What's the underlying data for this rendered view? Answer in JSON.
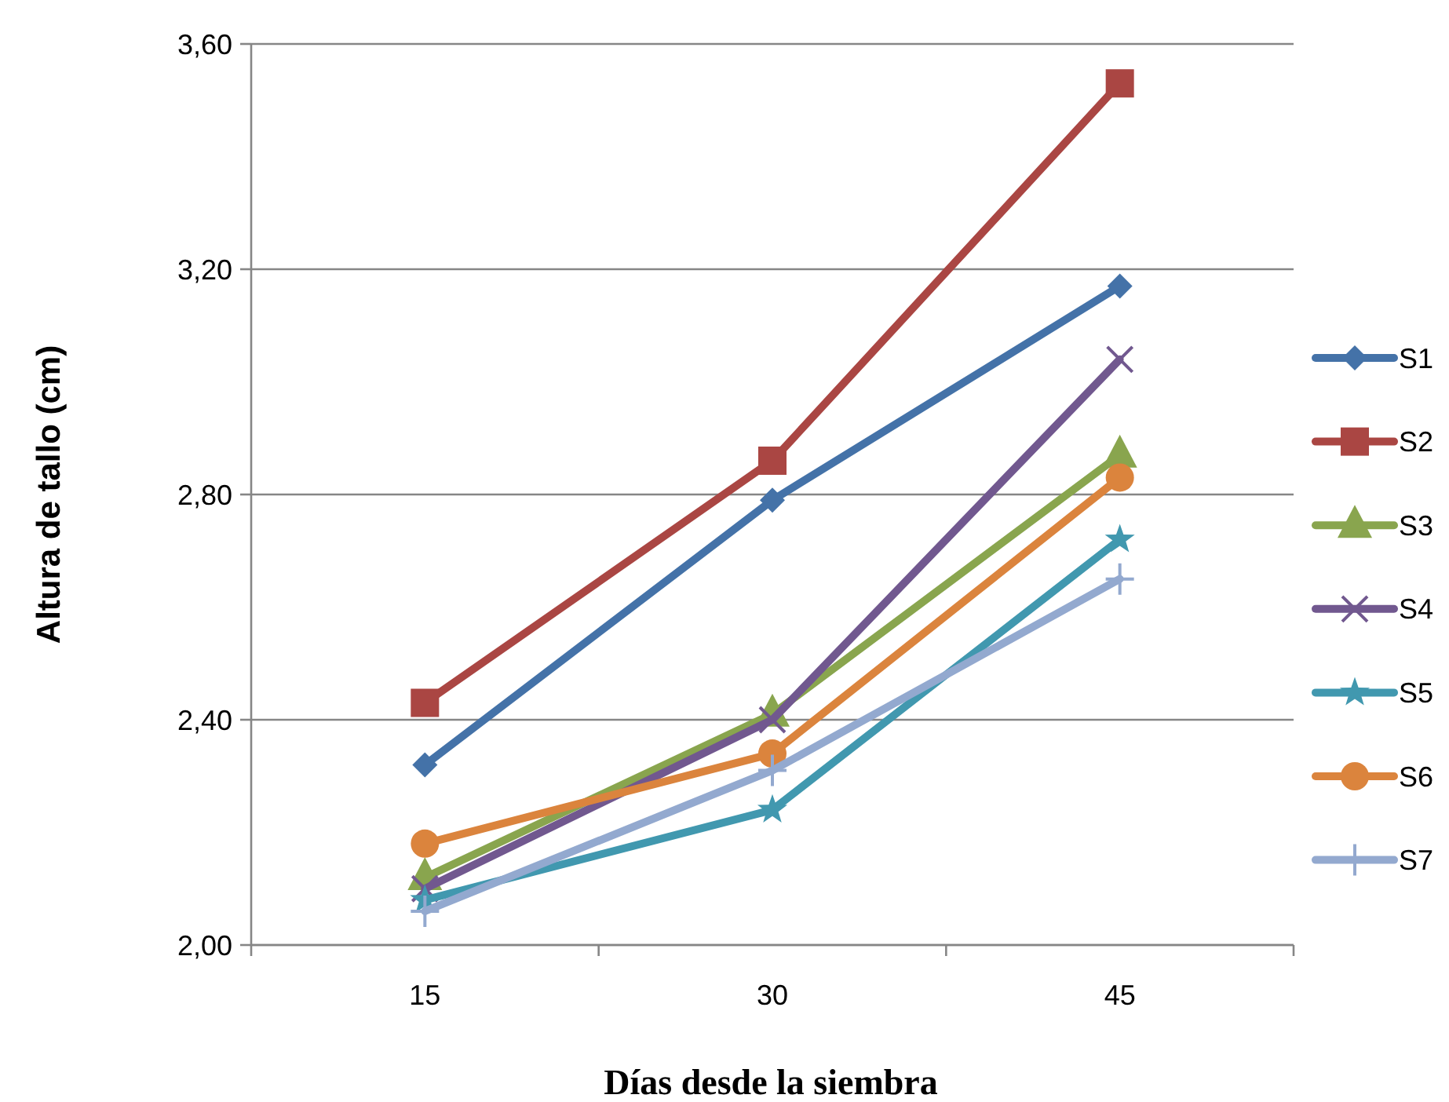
{
  "chart_data": {
    "type": "line",
    "xlabel": "Días desde la siembra",
    "ylabel": "Altura de tallo (cm)",
    "categories": [
      "15",
      "30",
      "45"
    ],
    "ylim": [
      2.0,
      3.6
    ],
    "yticks": [
      {
        "value": 2.0,
        "label": "2,00"
      },
      {
        "value": 2.4,
        "label": "2,40"
      },
      {
        "value": 2.8,
        "label": "2,80"
      },
      {
        "value": 3.2,
        "label": "3,20"
      },
      {
        "value": 3.6,
        "label": "3,60"
      }
    ],
    "grid": "y",
    "legend": "right",
    "series": [
      {
        "name": "S1",
        "color": "#4472a8",
        "marker": "diamond",
        "values": [
          2.32,
          2.79,
          3.17
        ]
      },
      {
        "name": "S2",
        "color": "#aa4643",
        "marker": "square",
        "values": [
          2.43,
          2.86,
          3.53
        ]
      },
      {
        "name": "S3",
        "color": "#89a54e",
        "marker": "triangle",
        "values": [
          2.12,
          2.41,
          2.87
        ]
      },
      {
        "name": "S4",
        "color": "#71588f",
        "marker": "cross",
        "values": [
          2.1,
          2.4,
          3.04
        ]
      },
      {
        "name": "S5",
        "color": "#4198af",
        "marker": "star",
        "values": [
          2.08,
          2.24,
          2.72
        ]
      },
      {
        "name": "S6",
        "color": "#db843d",
        "marker": "circle",
        "values": [
          2.18,
          2.34,
          2.83
        ]
      },
      {
        "name": "S7",
        "color": "#93a9cf",
        "marker": "plus",
        "values": [
          2.06,
          2.31,
          2.65
        ]
      }
    ]
  }
}
